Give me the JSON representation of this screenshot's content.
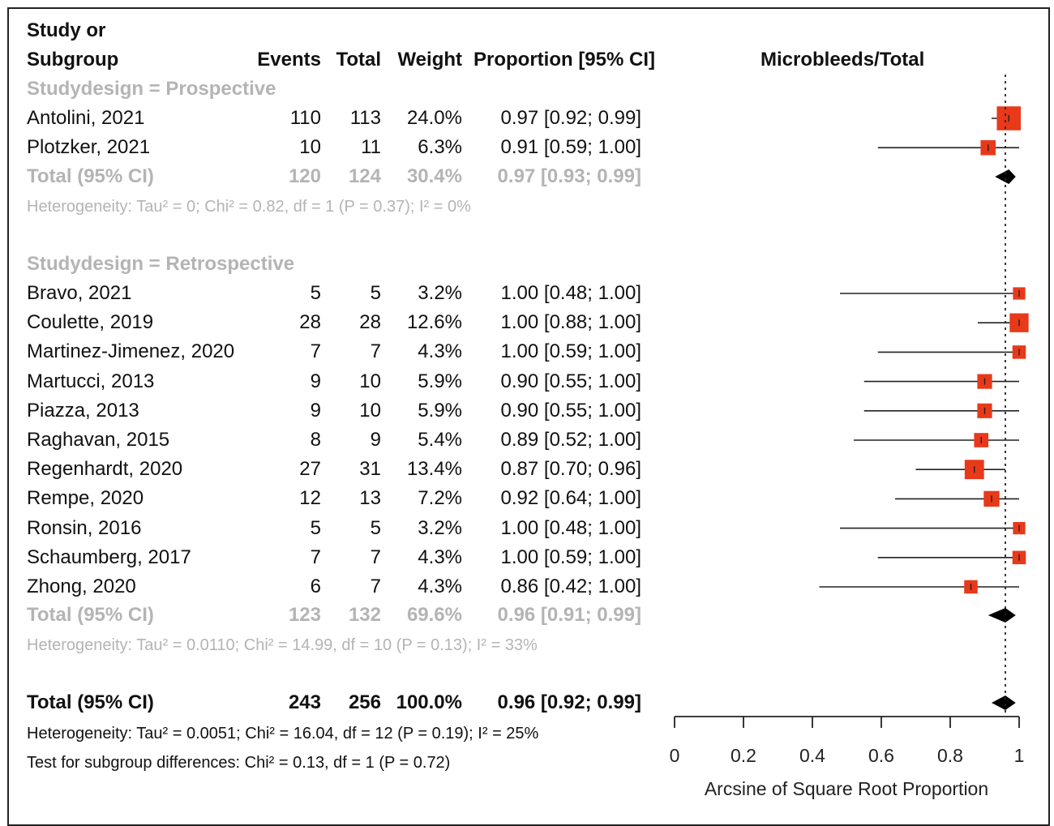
{
  "header": {
    "study_line1": "Study or",
    "study_line2": "Subgroup",
    "events": "Events",
    "total": "Total",
    "weight": "Weight",
    "proportion": "Proportion [95% CI]",
    "plot_title": "Microbleeds/Total"
  },
  "subgroups": [
    {
      "label": "Studydesign = Prospective",
      "studies": [
        {
          "study": "Antolini, 2021",
          "events": "110",
          "total": "113",
          "weight": "24.0%",
          "ci": "0.97 [0.92; 0.99]",
          "est": 0.97,
          "lo": 0.92,
          "hi": 0.99,
          "w": 24.0
        },
        {
          "study": "Plotzker, 2021",
          "events": "10",
          "total": "11",
          "weight": "6.3%",
          "ci": "0.91 [0.59; 1.00]",
          "est": 0.91,
          "lo": 0.59,
          "hi": 1.0,
          "w": 6.3
        }
      ],
      "total": {
        "label": "Total (95% CI)",
        "events": "120",
        "total": "124",
        "weight": "30.4%",
        "ci": "0.97 [0.93; 0.99]",
        "est": 0.97,
        "lo": 0.93,
        "hi": 0.99
      },
      "heterogeneity": "Heterogeneity: Tau² = 0; Chi² = 0.82, df = 1 (P = 0.37); I² = 0%"
    },
    {
      "label": "Studydesign = Retrospective",
      "studies": [
        {
          "study": "Bravo, 2021",
          "events": "5",
          "total": "5",
          "weight": "3.2%",
          "ci": "1.00 [0.48; 1.00]",
          "est": 1.0,
          "lo": 0.48,
          "hi": 1.0,
          "w": 3.2
        },
        {
          "study": "Coulette, 2019",
          "events": "28",
          "total": "28",
          "weight": "12.6%",
          "ci": "1.00 [0.88; 1.00]",
          "est": 1.0,
          "lo": 0.88,
          "hi": 1.0,
          "w": 12.6
        },
        {
          "study": "Martinez-Jimenez, 2020",
          "events": "7",
          "total": "7",
          "weight": "4.3%",
          "ci": "1.00 [0.59; 1.00]",
          "est": 1.0,
          "lo": 0.59,
          "hi": 1.0,
          "w": 4.3
        },
        {
          "study": "Martucci, 2013",
          "events": "9",
          "total": "10",
          "weight": "5.9%",
          "ci": "0.90 [0.55; 1.00]",
          "est": 0.9,
          "lo": 0.55,
          "hi": 1.0,
          "w": 5.9
        },
        {
          "study": "Piazza, 2013",
          "events": "9",
          "total": "10",
          "weight": "5.9%",
          "ci": "0.90 [0.55; 1.00]",
          "est": 0.9,
          "lo": 0.55,
          "hi": 1.0,
          "w": 5.9
        },
        {
          "study": "Raghavan, 2015",
          "events": "8",
          "total": "9",
          "weight": "5.4%",
          "ci": "0.89 [0.52; 1.00]",
          "est": 0.89,
          "lo": 0.52,
          "hi": 1.0,
          "w": 5.4
        },
        {
          "study": "Regenhardt, 2020",
          "events": "27",
          "total": "31",
          "weight": "13.4%",
          "ci": "0.87 [0.70; 0.96]",
          "est": 0.87,
          "lo": 0.7,
          "hi": 0.96,
          "w": 13.4
        },
        {
          "study": "Rempe, 2020",
          "events": "12",
          "total": "13",
          "weight": "7.2%",
          "ci": "0.92 [0.64; 1.00]",
          "est": 0.92,
          "lo": 0.64,
          "hi": 1.0,
          "w": 7.2
        },
        {
          "study": "Ronsin, 2016",
          "events": "5",
          "total": "5",
          "weight": "3.2%",
          "ci": "1.00 [0.48; 1.00]",
          "est": 1.0,
          "lo": 0.48,
          "hi": 1.0,
          "w": 3.2
        },
        {
          "study": "Schaumberg, 2017",
          "events": "7",
          "total": "7",
          "weight": "4.3%",
          "ci": "1.00 [0.59; 1.00]",
          "est": 1.0,
          "lo": 0.59,
          "hi": 1.0,
          "w": 4.3
        },
        {
          "study": "Zhong, 2020",
          "events": "6",
          "total": "7",
          "weight": "4.3%",
          "ci": "0.86 [0.42; 1.00]",
          "est": 0.86,
          "lo": 0.42,
          "hi": 1.0,
          "w": 4.3
        }
      ],
      "total": {
        "label": "Total (95% CI)",
        "events": "123",
        "total": "132",
        "weight": "69.6%",
        "ci": "0.96 [0.91; 0.99]",
        "est": 0.96,
        "lo": 0.91,
        "hi": 0.99
      },
      "heterogeneity": "Heterogeneity: Tau² = 0.0110; Chi² = 14.99, df = 10 (P = 0.13); I² = 33%"
    }
  ],
  "overall": {
    "label": "Total (95% CI)",
    "events": "243",
    "total": "256",
    "weight": "100.0%",
    "ci": "0.96 [0.92; 0.99]",
    "est": 0.96,
    "lo": 0.92,
    "hi": 0.99,
    "heterogeneity": "Heterogeneity: Tau² = 0.0051; Chi² = 16.04, df = 12 (P = 0.19); I² = 25%",
    "subgroup_test": "Test for subgroup differences: Chi² = 0.13, df = 1 (P = 0.72)"
  },
  "chart_data": {
    "type": "forest",
    "title": "Microbleeds/Total",
    "xlabel": "Arcsine of Square Root Proportion",
    "xlim": [
      0,
      1
    ],
    "ticks": [
      0,
      0.2,
      0.4,
      0.6,
      0.8,
      1
    ],
    "tick_labels": [
      "0",
      "0.2",
      "0.4",
      "0.6",
      "0.8",
      "1"
    ],
    "reference_line": 0.96,
    "colors": {
      "square": "#e8391a",
      "diamond": "#000000",
      "gray_text": "#b4b4b4"
    }
  }
}
